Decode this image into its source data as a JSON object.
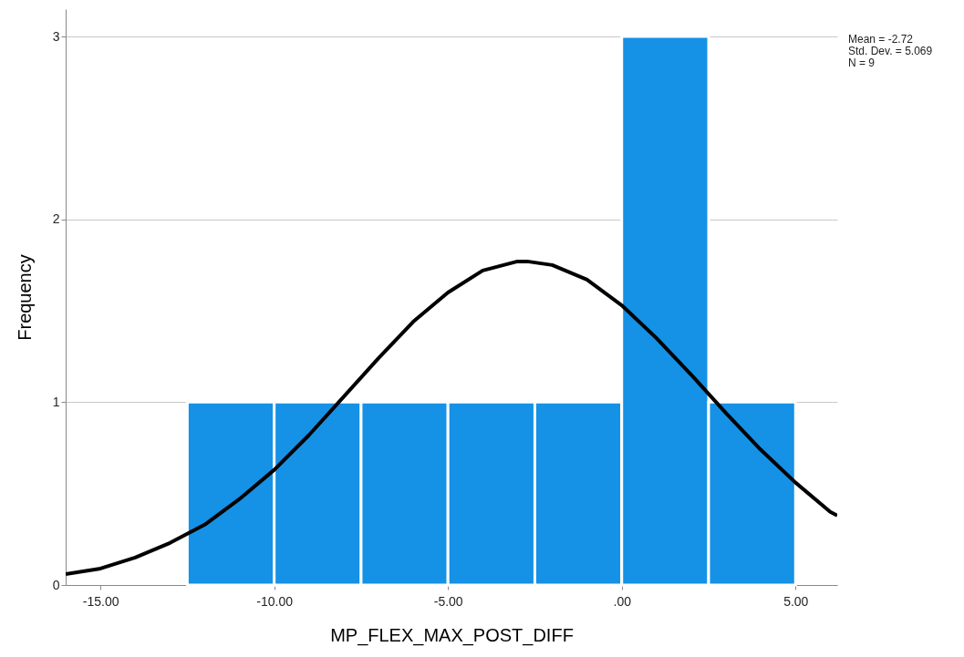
{
  "chart_data": {
    "type": "histogram",
    "xlabel": "MP_FLEX_MAX_POST_DIFF",
    "ylabel": "Frequency",
    "annotations": [
      "Mean = -2.72",
      "Std. Dev. = 5.069",
      "N = 9"
    ],
    "bins": [
      -12.5,
      -10,
      -7.5,
      -5,
      -2.5,
      0,
      2.5,
      5
    ],
    "series": [
      {
        "color": "#1591e6",
        "values": [
          1,
          1,
          1,
          1,
          1,
          3,
          1
        ]
      },
      {
        "type": "line",
        "color": "#000000",
        "x": [
          -16,
          -15,
          -14,
          -13,
          -12,
          -11,
          -10,
          -9,
          -8,
          -7,
          -6,
          -5,
          -4,
          -3,
          -2.72,
          -2,
          -1,
          0,
          1,
          2,
          3,
          4,
          5,
          6,
          6.2
        ],
        "values": [
          0.06,
          0.09,
          0.15,
          0.23,
          0.33,
          0.47,
          0.63,
          0.82,
          1.03,
          1.24,
          1.44,
          1.6,
          1.72,
          1.77,
          1.77,
          1.75,
          1.67,
          1.53,
          1.35,
          1.15,
          0.94,
          0.74,
          0.56,
          0.4,
          0.38
        ]
      }
    ],
    "xlim": [
      -16,
      6.2
    ],
    "xticks": [
      {
        "value": -15,
        "label": "-15.00"
      },
      {
        "value": -10,
        "label": "-10.00"
      },
      {
        "value": -5,
        "label": "-5.00"
      },
      {
        "value": 0,
        "label": ".00"
      },
      {
        "value": 5,
        "label": "5.00"
      }
    ],
    "ylim": [
      0,
      3.15
    ],
    "yticks": [
      0,
      1,
      2,
      3
    ],
    "grid": "y",
    "legend": false
  }
}
